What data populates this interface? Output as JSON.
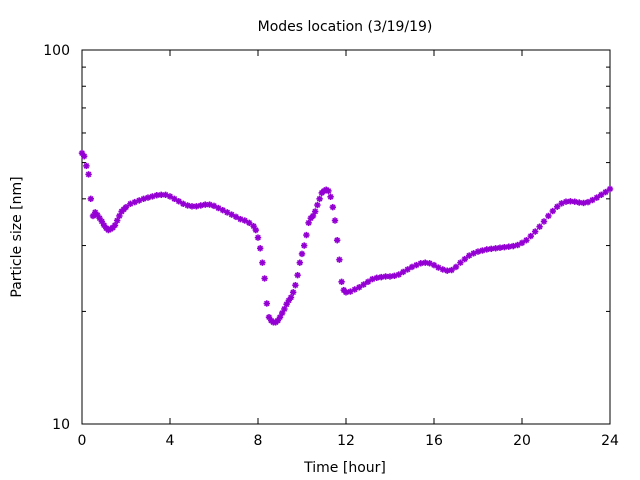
{
  "chart_data": {
    "type": "scatter",
    "title": "Modes location (3/19/19)",
    "xlabel": "Time [hour]",
    "ylabel": "Particle size [nm]",
    "xlim": [
      0,
      24
    ],
    "ylim": [
      10,
      100
    ],
    "yscale": "log",
    "grid": false,
    "marker_color": "#9400d3",
    "marker": "asterisk",
    "x_ticks": [
      0,
      4,
      8,
      12,
      16,
      20,
      24
    ],
    "x_tick_labels": [
      "0",
      "4",
      "8",
      "12",
      "16",
      "20",
      "24"
    ],
    "y_tick_labels": [
      "10",
      "100"
    ],
    "series": [
      {
        "points": [
          [
            0.0,
            53.0
          ],
          [
            0.1,
            52.0
          ],
          [
            0.2,
            49.0
          ],
          [
            0.3,
            46.5
          ],
          [
            0.4,
            40.0
          ],
          [
            0.5,
            36.0
          ],
          [
            0.6,
            36.8
          ],
          [
            0.7,
            36.2
          ],
          [
            0.8,
            35.5
          ],
          [
            0.9,
            34.8
          ],
          [
            1.0,
            34.0
          ],
          [
            1.1,
            33.4
          ],
          [
            1.2,
            33.0
          ],
          [
            1.3,
            33.2
          ],
          [
            1.4,
            33.5
          ],
          [
            1.5,
            34.0
          ],
          [
            1.6,
            35.0
          ],
          [
            1.7,
            36.0
          ],
          [
            1.8,
            37.0
          ],
          [
            1.9,
            37.5
          ],
          [
            2.0,
            38.0
          ],
          [
            2.2,
            38.8
          ],
          [
            2.4,
            39.2
          ],
          [
            2.6,
            39.6
          ],
          [
            2.8,
            40.0
          ],
          [
            3.0,
            40.3
          ],
          [
            3.2,
            40.6
          ],
          [
            3.4,
            40.9
          ],
          [
            3.6,
            41.0
          ],
          [
            3.8,
            41.0
          ],
          [
            4.0,
            40.6
          ],
          [
            4.2,
            40.0
          ],
          [
            4.4,
            39.4
          ],
          [
            4.6,
            38.8
          ],
          [
            4.8,
            38.4
          ],
          [
            5.0,
            38.2
          ],
          [
            5.2,
            38.2
          ],
          [
            5.4,
            38.4
          ],
          [
            5.6,
            38.6
          ],
          [
            5.8,
            38.6
          ],
          [
            6.0,
            38.3
          ],
          [
            6.2,
            37.8
          ],
          [
            6.4,
            37.3
          ],
          [
            6.6,
            36.8
          ],
          [
            6.8,
            36.3
          ],
          [
            7.0,
            35.8
          ],
          [
            7.2,
            35.3
          ],
          [
            7.4,
            35.0
          ],
          [
            7.6,
            34.5
          ],
          [
            7.8,
            33.8
          ],
          [
            7.9,
            33.0
          ],
          [
            8.0,
            31.5
          ],
          [
            8.1,
            29.5
          ],
          [
            8.2,
            27.0
          ],
          [
            8.3,
            24.5
          ],
          [
            8.4,
            21.0
          ],
          [
            8.5,
            19.3
          ],
          [
            8.6,
            18.9
          ],
          [
            8.7,
            18.7
          ],
          [
            8.8,
            18.7
          ],
          [
            8.9,
            18.9
          ],
          [
            9.0,
            19.3
          ],
          [
            9.1,
            19.8
          ],
          [
            9.2,
            20.3
          ],
          [
            9.3,
            20.9
          ],
          [
            9.4,
            21.4
          ],
          [
            9.5,
            21.8
          ],
          [
            9.6,
            22.5
          ],
          [
            9.7,
            23.5
          ],
          [
            9.8,
            25.0
          ],
          [
            9.9,
            27.0
          ],
          [
            10.0,
            28.5
          ],
          [
            10.1,
            30.0
          ],
          [
            10.2,
            32.0
          ],
          [
            10.3,
            34.5
          ],
          [
            10.4,
            35.5
          ],
          [
            10.5,
            36.0
          ],
          [
            10.6,
            37.0
          ],
          [
            10.7,
            38.5
          ],
          [
            10.8,
            40.0
          ],
          [
            10.9,
            41.5
          ],
          [
            11.0,
            42.0
          ],
          [
            11.1,
            42.3
          ],
          [
            11.2,
            42.0
          ],
          [
            11.3,
            40.5
          ],
          [
            11.4,
            38.0
          ],
          [
            11.5,
            35.0
          ],
          [
            11.6,
            31.0
          ],
          [
            11.7,
            27.5
          ],
          [
            11.8,
            24.0
          ],
          [
            11.9,
            22.8
          ],
          [
            12.0,
            22.5
          ],
          [
            12.2,
            22.6
          ],
          [
            12.4,
            22.9
          ],
          [
            12.6,
            23.2
          ],
          [
            12.8,
            23.6
          ],
          [
            13.0,
            24.0
          ],
          [
            13.2,
            24.4
          ],
          [
            13.4,
            24.6
          ],
          [
            13.6,
            24.7
          ],
          [
            13.8,
            24.8
          ],
          [
            14.0,
            24.8
          ],
          [
            14.2,
            24.9
          ],
          [
            14.4,
            25.1
          ],
          [
            14.6,
            25.5
          ],
          [
            14.8,
            25.9
          ],
          [
            15.0,
            26.3
          ],
          [
            15.2,
            26.6
          ],
          [
            15.4,
            26.9
          ],
          [
            15.6,
            27.0
          ],
          [
            15.8,
            26.9
          ],
          [
            16.0,
            26.6
          ],
          [
            16.2,
            26.2
          ],
          [
            16.4,
            25.9
          ],
          [
            16.6,
            25.7
          ],
          [
            16.8,
            25.8
          ],
          [
            17.0,
            26.3
          ],
          [
            17.2,
            27.0
          ],
          [
            17.4,
            27.6
          ],
          [
            17.6,
            28.2
          ],
          [
            17.8,
            28.6
          ],
          [
            18.0,
            28.9
          ],
          [
            18.2,
            29.1
          ],
          [
            18.4,
            29.3
          ],
          [
            18.6,
            29.4
          ],
          [
            18.8,
            29.5
          ],
          [
            19.0,
            29.6
          ],
          [
            19.2,
            29.7
          ],
          [
            19.4,
            29.8
          ],
          [
            19.6,
            29.9
          ],
          [
            19.8,
            30.1
          ],
          [
            20.0,
            30.5
          ],
          [
            20.2,
            31.0
          ],
          [
            20.4,
            31.8
          ],
          [
            20.6,
            32.7
          ],
          [
            20.8,
            33.7
          ],
          [
            21.0,
            34.8
          ],
          [
            21.2,
            36.0
          ],
          [
            21.4,
            37.1
          ],
          [
            21.6,
            38.1
          ],
          [
            21.8,
            38.9
          ],
          [
            22.0,
            39.3
          ],
          [
            22.2,
            39.4
          ],
          [
            22.4,
            39.3
          ],
          [
            22.6,
            39.1
          ],
          [
            22.8,
            39.0
          ],
          [
            23.0,
            39.2
          ],
          [
            23.2,
            39.7
          ],
          [
            23.4,
            40.3
          ],
          [
            23.6,
            41.0
          ],
          [
            23.8,
            41.7
          ],
          [
            24.0,
            42.5
          ]
        ]
      }
    ]
  }
}
